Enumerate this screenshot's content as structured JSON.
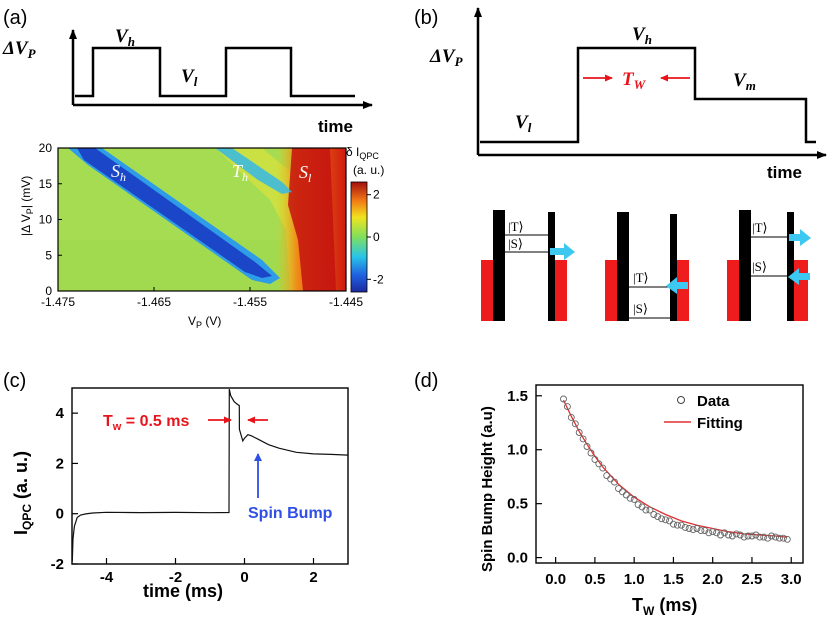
{
  "panels": {
    "a": {
      "label": "(a)",
      "pulse": {
        "y_label_main": "ΔV",
        "y_label_sub": "P",
        "x_label": "time",
        "level_high_main": "V",
        "level_high_sub": "h",
        "level_low_main": "V",
        "level_low_sub": "l"
      },
      "heatmap": {
        "ylabel_prefix": "|Δ V",
        "ylabel_sub": "P",
        "ylabel_suffix": "| (mV)",
        "xlabel_main": "V",
        "xlabel_sub": "P",
        "xlabel_unit": " (V)",
        "x_ticks": [
          "-1.475",
          "-1.465",
          "-1.455",
          "-1.445"
        ],
        "y_ticks": [
          "20",
          "15",
          "10",
          "5",
          "0"
        ],
        "features": [
          {
            "main": "S",
            "sub": "h"
          },
          {
            "main": "T",
            "sub": "h"
          },
          {
            "main": "S",
            "sub": "l"
          }
        ],
        "colorbar": {
          "title_main": "δ I",
          "title_sub": "QPC",
          "unit": "(a. u.)",
          "ticks": [
            "2",
            "0",
            "-2"
          ]
        }
      }
    },
    "b": {
      "label": "(b)",
      "pulse": {
        "y_label_main": "ΔV",
        "y_label_sub": "P",
        "x_label": "time",
        "level_high_main": "V",
        "level_high_sub": "h",
        "level_low_main": "V",
        "level_low_sub": "l",
        "level_mid_main": "V",
        "level_mid_sub": "m",
        "width_main": "T",
        "width_sub": "W"
      },
      "states": {
        "triplet": "|T⟩",
        "singlet": "|S⟩"
      }
    },
    "c": {
      "label": "(c)",
      "chart_data": {
        "type": "line",
        "xlabel": "time (ms)",
        "ylabel_main": "I",
        "ylabel_sub": "QPC",
        "ylabel_unit": " (a. u.)",
        "xlim": [
          -5,
          3
        ],
        "ylim": [
          -2,
          5
        ],
        "x_ticks": [
          "-4",
          "-2",
          "0",
          "2"
        ],
        "y_ticks": [
          "4",
          "2",
          "0",
          "-2"
        ],
        "series": [
          {
            "name": "I_QPC",
            "x": [
              -4.99,
              -4.97,
              -4.93,
              -4.85,
              -4.75,
              -4.6,
              -4.4,
              -4.0,
              -3.0,
              -2.0,
              -1.0,
              -0.45,
              -0.44,
              -0.4,
              -0.3,
              -0.2,
              -0.15,
              -0.149,
              -0.05,
              0.0,
              0.1,
              0.2,
              0.4,
              0.7,
              1.0,
              1.5,
              2.0,
              2.5,
              3.0
            ],
            "y": [
              -1.9,
              -1.0,
              -0.5,
              -0.15,
              -0.05,
              0.0,
              0.03,
              0.05,
              0.05,
              0.05,
              0.05,
              0.05,
              4.95,
              4.7,
              4.45,
              4.35,
              4.3,
              3.35,
              2.9,
              3.0,
              3.15,
              3.1,
              2.95,
              2.75,
              2.6,
              2.45,
              2.38,
              2.35,
              2.33
            ]
          }
        ],
        "annotations": {
          "tw_main": "T",
          "tw_sub": "w",
          "tw_value": " = 0.5 ms",
          "spin_bump": "Spin Bump"
        }
      }
    },
    "d": {
      "label": "(d)",
      "chart_data": {
        "type": "scatter",
        "xlabel_main": "T",
        "xlabel_sub": "W",
        "xlabel_unit": " (ms)",
        "ylabel": "Spin Bump Height (a.u)",
        "xlim": [
          -0.25,
          3.15
        ],
        "ylim": [
          -0.05,
          1.6
        ],
        "x_ticks": [
          "0.0",
          "0.5",
          "1.0",
          "1.5",
          "2.0",
          "2.5",
          "3.0"
        ],
        "y_ticks": [
          "1.5",
          "1.0",
          "0.5",
          "0.0"
        ],
        "legend": [
          "Data",
          "Fitting"
        ],
        "legend_position": "top-right",
        "series": [
          {
            "name": "Data",
            "x": [
              0.1,
              0.15,
              0.2,
              0.25,
              0.3,
              0.35,
              0.4,
              0.45,
              0.5,
              0.55,
              0.6,
              0.65,
              0.7,
              0.75,
              0.8,
              0.85,
              0.9,
              0.95,
              1.0,
              1.05,
              1.1,
              1.15,
              1.2,
              1.25,
              1.3,
              1.35,
              1.4,
              1.45,
              1.5,
              1.55,
              1.6,
              1.65,
              1.7,
              1.75,
              1.8,
              1.85,
              1.9,
              1.95,
              2.0,
              2.05,
              2.1,
              2.15,
              2.2,
              2.25,
              2.3,
              2.35,
              2.4,
              2.45,
              2.5,
              2.55,
              2.6,
              2.65,
              2.7,
              2.75,
              2.8,
              2.85,
              2.9,
              2.95
            ],
            "y": [
              1.47,
              1.4,
              1.3,
              1.24,
              1.16,
              1.1,
              1.03,
              0.97,
              0.91,
              0.87,
              0.83,
              0.76,
              0.73,
              0.7,
              0.64,
              0.61,
              0.58,
              0.55,
              0.54,
              0.49,
              0.47,
              0.44,
              0.44,
              0.4,
              0.38,
              0.36,
              0.35,
              0.34,
              0.31,
              0.3,
              0.3,
              0.28,
              0.27,
              0.26,
              0.27,
              0.25,
              0.25,
              0.23,
              0.24,
              0.23,
              0.21,
              0.23,
              0.21,
              0.2,
              0.22,
              0.21,
              0.19,
              0.2,
              0.2,
              0.21,
              0.19,
              0.19,
              0.18,
              0.2,
              0.19,
              0.18,
              0.18,
              0.17
            ]
          },
          {
            "name": "Fitting",
            "x": [
              0.1,
              0.2,
              0.3,
              0.4,
              0.5,
              0.6,
              0.7,
              0.8,
              0.9,
              1.0,
              1.2,
              1.4,
              1.6,
              1.8,
              2.0,
              2.2,
              2.4,
              2.6,
              2.8,
              2.95
            ],
            "y": [
              1.46,
              1.31,
              1.17,
              1.05,
              0.94,
              0.84,
              0.76,
              0.68,
              0.62,
              0.56,
              0.47,
              0.4,
              0.34,
              0.3,
              0.27,
              0.24,
              0.22,
              0.21,
              0.2,
              0.19
            ]
          }
        ]
      }
    }
  },
  "colors": {
    "axis": "#000000",
    "red": "#e8141c",
    "blue_text": "#2f4fe6",
    "cyan_arrow": "#3cc8f0",
    "fit_line": "#e03030",
    "barrier_lead": "#ee1c1c"
  }
}
